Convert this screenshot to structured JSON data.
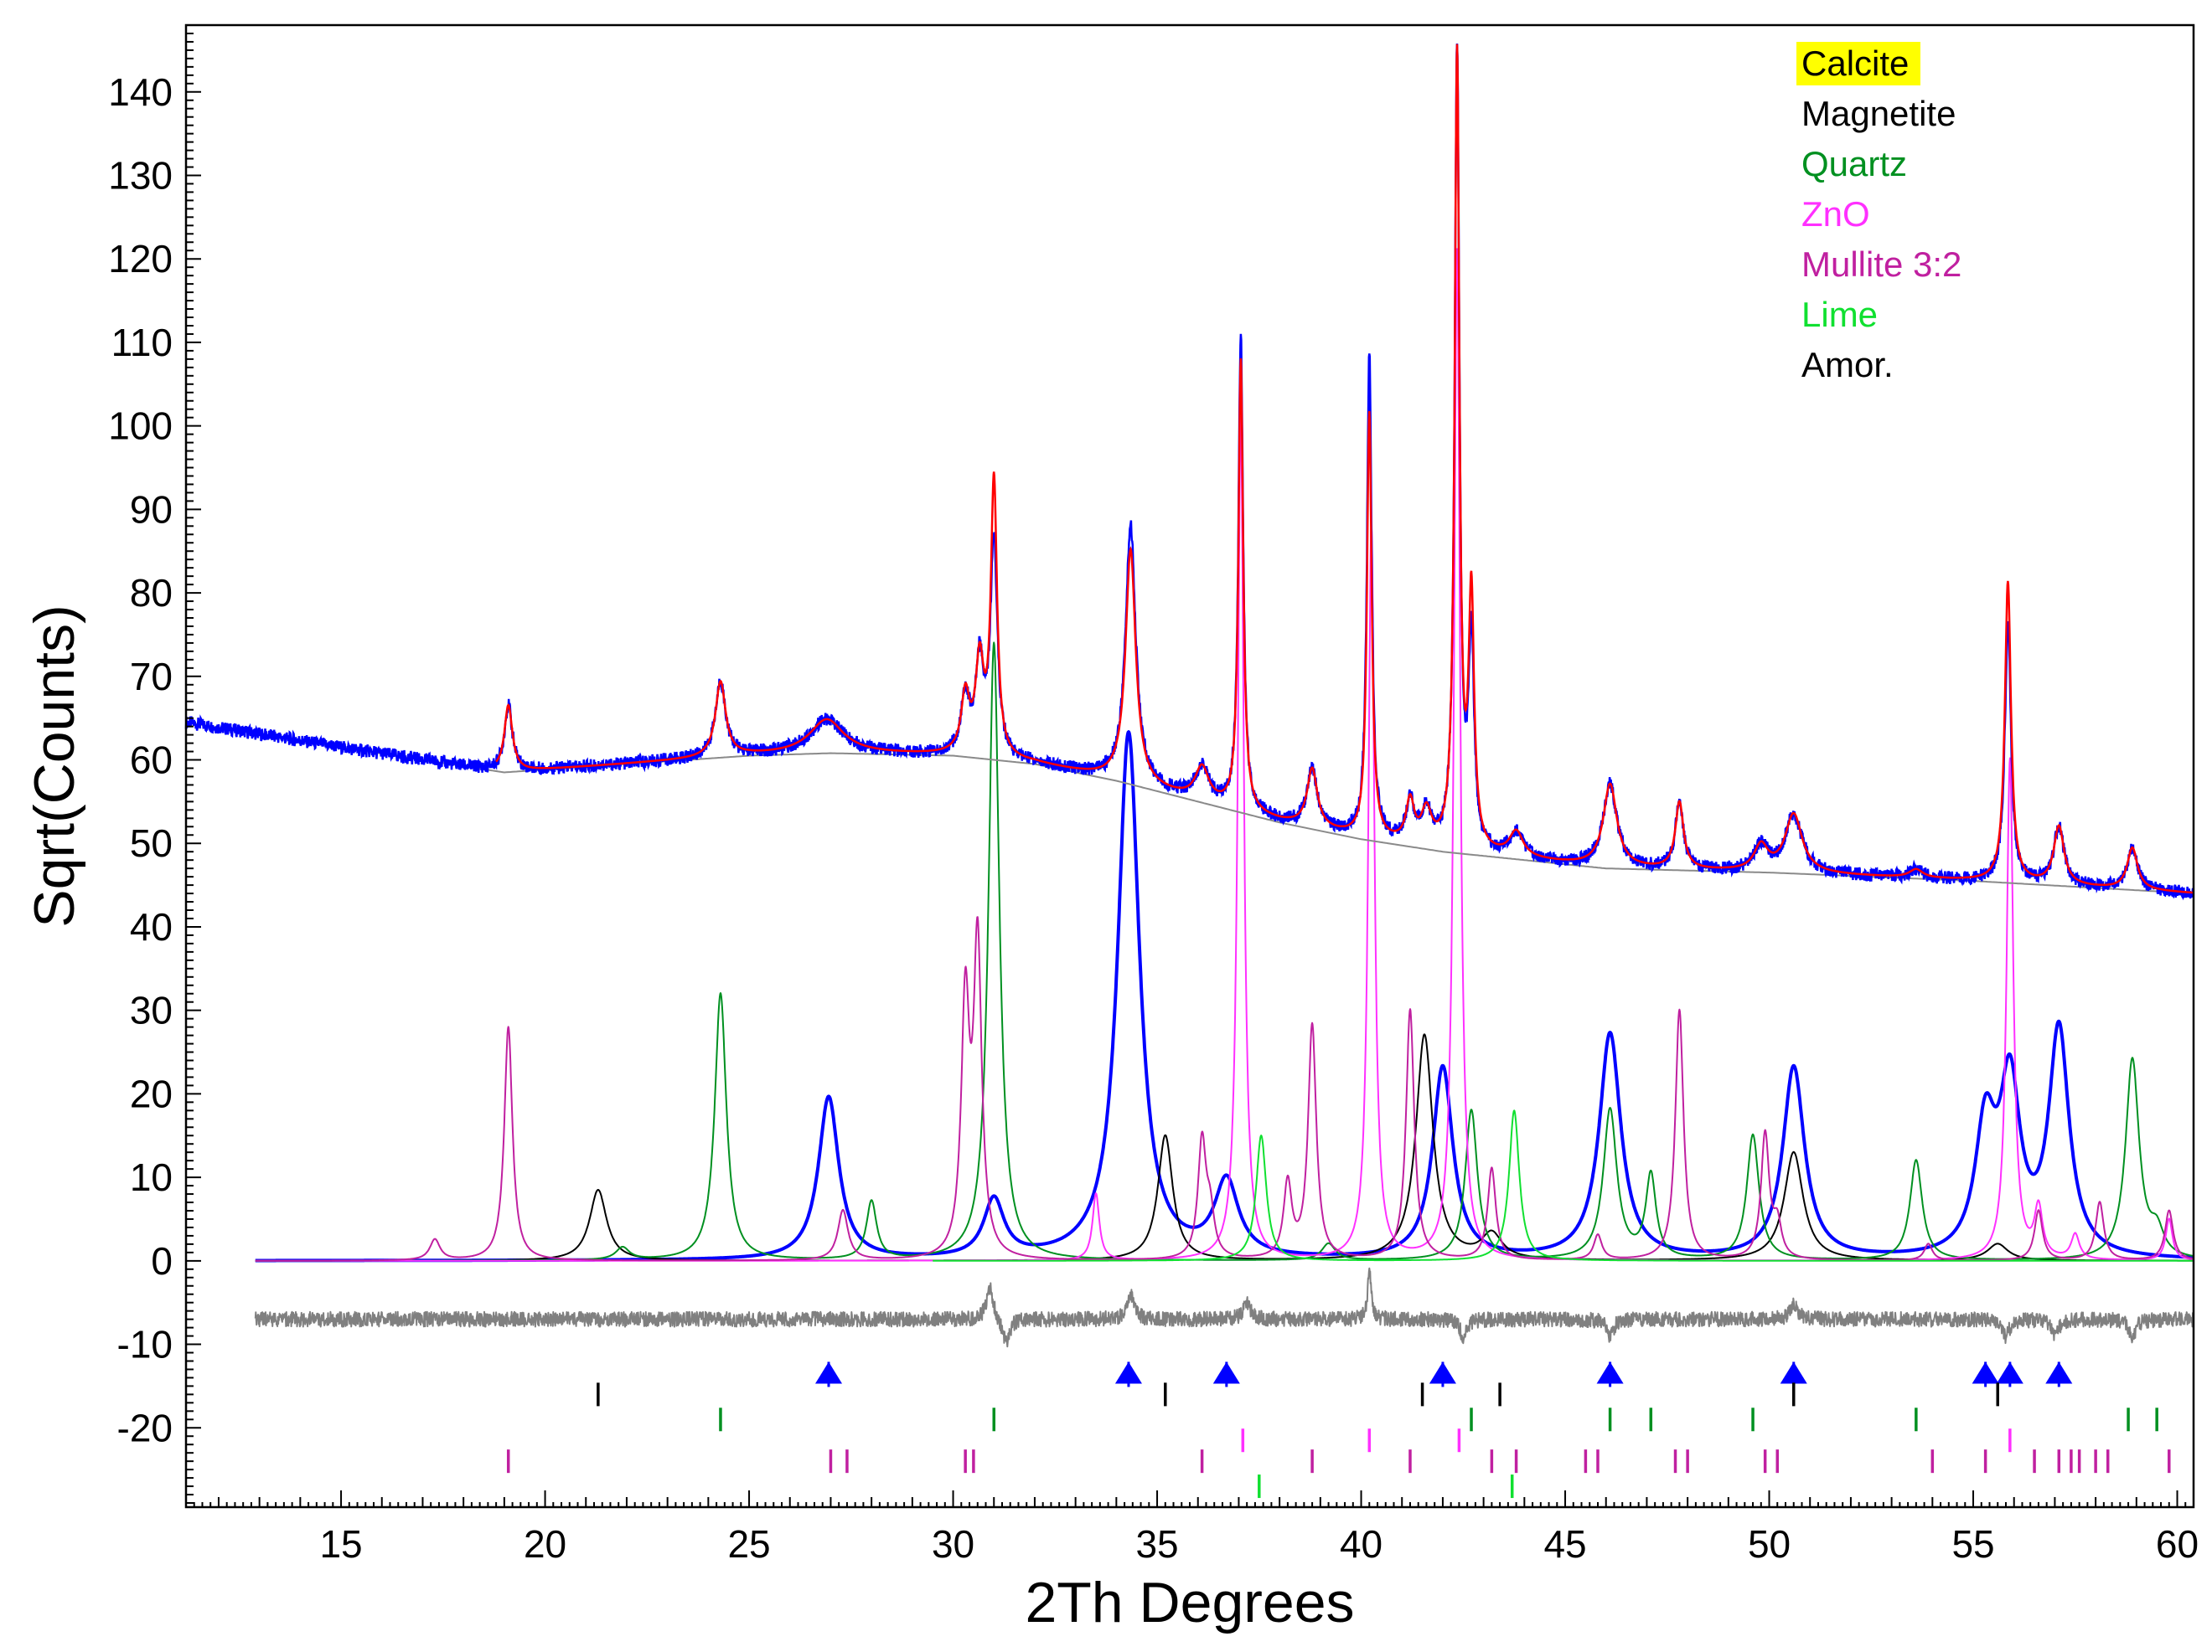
{
  "chart_data": {
    "type": "line",
    "xlabel": "2Th Degrees",
    "ylabel": "Sqrt(Counts)",
    "xlim": [
      11.2,
      60.4
    ],
    "ylim": [
      -29.5,
      148
    ],
    "x_ticks": [
      15,
      20,
      25,
      30,
      35,
      40,
      45,
      50,
      55,
      60
    ],
    "y_ticks": [
      -20,
      -10,
      0,
      10,
      20,
      30,
      40,
      50,
      60,
      70,
      80,
      90,
      100,
      110,
      120,
      130,
      140
    ],
    "grid": false,
    "legend_position": "top-right",
    "legend": [
      {
        "label": "Calcite",
        "color": "#0000d0",
        "text_color": "#000000",
        "highlight": "#ffff00"
      },
      {
        "label": "Magnetite",
        "color": "#000000",
        "text_color": "#000000"
      },
      {
        "label": "Quartz",
        "color": "#009020",
        "text_color": "#009020"
      },
      {
        "label": "ZnO",
        "color": "#ff30ff",
        "text_color": "#ff30ff"
      },
      {
        "label": "Mullite 3:2",
        "color": "#c020a0",
        "text_color": "#c020a0"
      },
      {
        "label": "Lime",
        "color": "#10e030",
        "text_color": "#10e030"
      },
      {
        "label": "Amor.",
        "color": "#000000",
        "text_color": "#000000"
      }
    ],
    "background": {
      "color": "#8a8a8a",
      "points": [
        [
          11.2,
          64.5
        ],
        [
          15,
          61.5
        ],
        [
          19,
          58.5
        ],
        [
          22,
          59.5
        ],
        [
          25,
          60.5
        ],
        [
          27,
          60.8
        ],
        [
          30,
          60.5
        ],
        [
          32,
          59.5
        ],
        [
          34,
          57.5
        ],
        [
          36,
          55
        ],
        [
          38,
          52.5
        ],
        [
          40,
          50.5
        ],
        [
          42,
          49
        ],
        [
          44,
          48
        ],
        [
          46,
          47
        ],
        [
          50,
          46.5
        ],
        [
          55,
          45.5
        ],
        [
          60.4,
          44
        ]
      ]
    },
    "observed": {
      "name": "observed",
      "color": "#0000ff",
      "x_start": 11.2,
      "x_end": 60.4,
      "peaks": [
        [
          19.1,
          8,
          0.12
        ],
        [
          24.3,
          9,
          0.15
        ],
        [
          26.9,
          4,
          0.5
        ],
        [
          30.3,
          7,
          0.12
        ],
        [
          30.65,
          11,
          0.12
        ],
        [
          31.0,
          26,
          0.1
        ],
        [
          34.35,
          31,
          0.15
        ],
        [
          36.1,
          4,
          0.2
        ],
        [
          37.05,
          57,
          0.07
        ],
        [
          38.8,
          7,
          0.15
        ],
        [
          40.2,
          58,
          0.07
        ],
        [
          41.2,
          5,
          0.12
        ],
        [
          41.6,
          4,
          0.15
        ],
        [
          42.35,
          96,
          0.07
        ],
        [
          42.7,
          25,
          0.08
        ],
        [
          43.8,
          3,
          0.2
        ],
        [
          46.1,
          10,
          0.2
        ],
        [
          47.8,
          8,
          0.12
        ],
        [
          49.8,
          3,
          0.2
        ],
        [
          50.6,
          7,
          0.25
        ],
        [
          53.6,
          1,
          0.2
        ],
        [
          55.85,
          31,
          0.09
        ],
        [
          57.1,
          7,
          0.15
        ],
        [
          58.9,
          5,
          0.15
        ]
      ]
    },
    "calculated": {
      "name": "calculated",
      "color": "#ff0000",
      "peaks": [
        [
          19.1,
          8,
          0.12
        ],
        [
          24.3,
          9,
          0.15
        ],
        [
          26.9,
          4,
          0.5
        ],
        [
          30.3,
          7,
          0.12
        ],
        [
          30.65,
          11,
          0.12
        ],
        [
          31.0,
          33,
          0.09
        ],
        [
          34.35,
          28,
          0.15
        ],
        [
          36.1,
          4,
          0.2
        ],
        [
          37.05,
          54,
          0.07
        ],
        [
          38.8,
          7,
          0.15
        ],
        [
          40.2,
          51,
          0.07
        ],
        [
          41.2,
          5,
          0.12
        ],
        [
          41.6,
          4,
          0.15
        ],
        [
          42.35,
          95,
          0.07
        ],
        [
          42.7,
          30,
          0.08
        ],
        [
          43.8,
          3,
          0.2
        ],
        [
          46.1,
          10,
          0.2
        ],
        [
          47.8,
          8,
          0.12
        ],
        [
          49.8,
          3,
          0.2
        ],
        [
          50.6,
          7,
          0.25
        ],
        [
          53.6,
          1,
          0.2
        ],
        [
          55.85,
          36,
          0.09
        ],
        [
          57.1,
          7,
          0.15
        ],
        [
          58.9,
          5,
          0.15
        ]
      ]
    },
    "components": [
      {
        "name": "Calcite",
        "color": "#0000ff",
        "width": 4,
        "range": [
          12.9,
          60.4
        ],
        "peaks": [
          [
            26.95,
            19.5,
            0.3
          ],
          [
            31.0,
            7,
            0.3
          ],
          [
            34.3,
            63,
            0.32
          ],
          [
            36.7,
            9,
            0.35
          ],
          [
            42.0,
            23,
            0.3
          ],
          [
            46.1,
            27,
            0.32
          ],
          [
            50.6,
            23,
            0.32
          ],
          [
            55.3,
            15,
            0.3
          ],
          [
            55.9,
            20,
            0.3
          ],
          [
            57.1,
            27,
            0.3
          ]
        ]
      },
      {
        "name": "Magnetite",
        "color": "#000000",
        "width": 2,
        "range": [
          12.9,
          60.4
        ],
        "peaks": [
          [
            21.3,
            8.5,
            0.25
          ],
          [
            35.2,
            15,
            0.22
          ],
          [
            41.55,
            27,
            0.25
          ],
          [
            43.2,
            3,
            0.3
          ],
          [
            50.6,
            13,
            0.28
          ],
          [
            55.6,
            2,
            0.3
          ]
        ]
      },
      {
        "name": "Quartz",
        "color": "#009020",
        "width": 2,
        "range": [
          12.9,
          60.4
        ],
        "peaks": [
          [
            21.9,
            1.5,
            0.2
          ],
          [
            24.3,
            32,
            0.17
          ],
          [
            28.0,
            7,
            0.15
          ],
          [
            31.0,
            74,
            0.16
          ],
          [
            39.2,
            2,
            0.2
          ],
          [
            42.7,
            18,
            0.18
          ],
          [
            46.1,
            18,
            0.2
          ],
          [
            47.1,
            10,
            0.15
          ],
          [
            49.6,
            15,
            0.18
          ],
          [
            53.6,
            12,
            0.18
          ],
          [
            58.9,
            24,
            0.2
          ],
          [
            59.5,
            3,
            0.2
          ]
        ]
      },
      {
        "name": "ZnO",
        "color": "#ff30ff",
        "width": 2,
        "range": [
          12.9,
          60.4
        ],
        "peaks": [
          [
            33.5,
            8,
            0.1
          ],
          [
            37.05,
            101,
            0.09
          ],
          [
            40.25,
            88,
            0.09
          ],
          [
            42.35,
            121,
            0.09
          ],
          [
            55.9,
            60,
            0.1
          ],
          [
            56.6,
            6,
            0.12
          ],
          [
            57.5,
            3,
            0.12
          ],
          [
            59.8,
            5,
            0.1
          ]
        ]
      },
      {
        "name": "Mullite 3:2",
        "color": "#c020a0",
        "width": 2,
        "range": [
          12.9,
          60.4
        ],
        "peaks": [
          [
            17.3,
            2.5,
            0.15
          ],
          [
            19.1,
            28,
            0.12
          ],
          [
            27.3,
            6,
            0.15
          ],
          [
            30.3,
            30,
            0.12
          ],
          [
            30.6,
            37,
            0.12
          ],
          [
            36.1,
            14,
            0.12
          ],
          [
            36.3,
            5,
            0.12
          ],
          [
            38.2,
            9,
            0.12
          ],
          [
            38.8,
            28,
            0.12
          ],
          [
            41.2,
            30,
            0.12
          ],
          [
            43.2,
            11,
            0.12
          ],
          [
            45.8,
            3,
            0.12
          ],
          [
            47.8,
            30,
            0.12
          ],
          [
            49.9,
            15,
            0.12
          ],
          [
            50.2,
            4,
            0.12
          ],
          [
            53.9,
            2,
            0.12
          ],
          [
            56.6,
            6,
            0.12
          ],
          [
            58.1,
            7,
            0.12
          ],
          [
            59.8,
            6,
            0.12
          ]
        ]
      },
      {
        "name": "Lime",
        "color": "#10e030",
        "width": 2,
        "range": [
          29.5,
          60.4
        ],
        "peaks": [
          [
            37.55,
            15,
            0.15
          ],
          [
            43.75,
            18,
            0.15
          ]
        ]
      },
      {
        "name": "difference",
        "color": "#808080",
        "width": 2,
        "range": [
          12.9,
          60.4
        ],
        "offset": -7,
        "peaks": [
          [
            30.9,
            4,
            0.1
          ],
          [
            31.3,
            -3,
            0.1
          ],
          [
            34.35,
            3,
            0.1
          ],
          [
            37.2,
            2,
            0.1
          ],
          [
            40.2,
            6,
            0.05
          ],
          [
            42.5,
            -2,
            0.1
          ],
          [
            46.1,
            -2,
            0.1
          ],
          [
            50.6,
            2,
            0.1
          ],
          [
            55.8,
            -2,
            0.1
          ],
          [
            57.0,
            -2,
            0.1
          ],
          [
            58.9,
            -2,
            0.1
          ]
        ]
      }
    ],
    "reflection_markers": [
      {
        "name": "Calcite",
        "color": "#0000ff",
        "style": "triangle",
        "y": -13.5,
        "x": [
          26.95,
          34.3,
          36.7,
          42.0,
          46.1,
          50.6,
          55.3,
          55.9,
          57.1
        ]
      },
      {
        "name": "Magnetite",
        "color": "#000000",
        "style": "tick",
        "y": -16,
        "x": [
          21.3,
          35.2,
          41.5,
          43.4,
          50.6,
          55.6
        ]
      },
      {
        "name": "Quartz",
        "color": "#009020",
        "style": "tick",
        "y": -19,
        "x": [
          24.3,
          31.0,
          42.7,
          46.1,
          47.1,
          49.6,
          53.6,
          58.8,
          59.5
        ]
      },
      {
        "name": "ZnO",
        "color": "#ff30ff",
        "style": "tick",
        "y": -21.5,
        "x": [
          37.1,
          40.2,
          42.4,
          55.9
        ]
      },
      {
        "name": "Mullite 3:2",
        "color": "#c020a0",
        "style": "tick",
        "y": -24,
        "x": [
          19.1,
          27.0,
          27.4,
          30.3,
          30.5,
          36.1,
          38.8,
          41.2,
          43.2,
          43.8,
          45.5,
          45.8,
          47.7,
          48.0,
          49.9,
          50.2,
          54.0,
          55.3,
          56.5,
          57.1,
          57.4,
          57.6,
          58.0,
          58.3,
          59.8
        ]
      },
      {
        "name": "Lime",
        "color": "#10e030",
        "style": "tick",
        "y": -27,
        "x": [
          37.5,
          43.7
        ]
      }
    ]
  }
}
